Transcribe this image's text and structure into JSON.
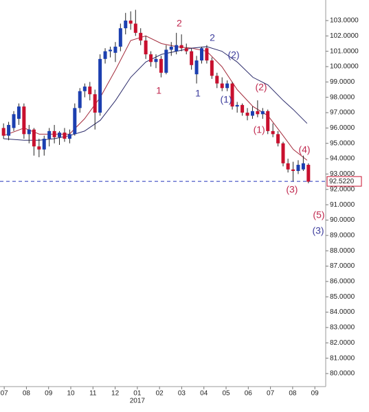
{
  "chart_data": {
    "type": "candlestick",
    "up_color": "#1c3fb0",
    "down_color": "#c8102e",
    "xlim": [
      -0.19,
      14.49
    ],
    "ylim": [
      79.15,
      104.34
    ],
    "xticks": [
      {
        "value": 0,
        "label": "07"
      },
      {
        "value": 1,
        "label": "08"
      },
      {
        "value": 2,
        "label": "09"
      },
      {
        "value": 3,
        "label": "10"
      },
      {
        "value": 4,
        "label": "11"
      },
      {
        "value": 5,
        "label": "12"
      },
      {
        "value": 6,
        "label": "01"
      },
      {
        "value": 7,
        "label": "02"
      },
      {
        "value": 8,
        "label": "03"
      },
      {
        "value": 9,
        "label": "04"
      },
      {
        "value": 10,
        "label": "05"
      },
      {
        "value": 11,
        "label": "06"
      },
      {
        "value": 12,
        "label": "07"
      },
      {
        "value": 13,
        "label": "08"
      },
      {
        "value": 14,
        "label": "09"
      }
    ],
    "year_label": "2017",
    "yticks": [
      {
        "value": 80,
        "label": "80.0000"
      },
      {
        "value": 81,
        "label": "81.0000"
      },
      {
        "value": 82,
        "label": "82.0000"
      },
      {
        "value": 83,
        "label": "83.0000"
      },
      {
        "value": 84,
        "label": "84.0000"
      },
      {
        "value": 85,
        "label": "85.0000"
      },
      {
        "value": 86,
        "label": "86.0000"
      },
      {
        "value": 87,
        "label": "87.0000"
      },
      {
        "value": 88,
        "label": "88.0000"
      },
      {
        "value": 89,
        "label": "89.0000"
      },
      {
        "value": 90,
        "label": "90.0000"
      },
      {
        "value": 91,
        "label": "91.0000"
      },
      {
        "value": 92,
        "label": "92.0000"
      },
      {
        "value": 93,
        "label": "93.0000"
      },
      {
        "value": 94,
        "label": "94.0000"
      },
      {
        "value": 95,
        "label": "95.0000"
      },
      {
        "value": 96,
        "label": "96.0000"
      },
      {
        "value": 97,
        "label": "97.0000"
      },
      {
        "value": 98,
        "label": "98.0000"
      },
      {
        "value": 99,
        "label": "99.0000"
      },
      {
        "value": 100,
        "label": "100.0000"
      },
      {
        "value": 101,
        "label": "101.0000"
      },
      {
        "value": 102,
        "label": "102.0000"
      },
      {
        "value": 103,
        "label": "103.0000"
      }
    ],
    "x": [
      -0.03,
      0.2,
      0.43,
      0.66,
      0.89,
      1.12,
      1.34,
      1.57,
      1.8,
      2.03,
      2.26,
      2.49,
      2.72,
      2.95,
      3.18,
      3.41,
      3.63,
      3.86,
      4.09,
      4.32,
      4.55,
      4.78,
      5.01,
      5.24,
      5.47,
      5.7,
      5.92,
      6.15,
      6.38,
      6.61,
      6.84,
      7.07,
      7.3,
      7.53,
      7.76,
      7.99,
      8.21,
      8.44,
      8.67,
      8.9,
      9.13,
      9.36,
      9.59,
      9.82,
      10.05,
      10.28,
      10.5,
      10.73,
      10.96,
      11.19,
      11.42,
      11.65,
      11.88,
      12.11,
      12.34,
      12.57,
      12.79,
      13.02,
      13.25,
      13.48,
      13.71
    ],
    "open": [
      96.0,
      95.5,
      96.0,
      96.6,
      97.4,
      95.6,
      95.9,
      94.8,
      94.6,
      95.3,
      95.8,
      95.4,
      95.7,
      95.3,
      95.6,
      97.3,
      98.4,
      98.7,
      98.2,
      97.0,
      100.5,
      101.0,
      100.9,
      101.3,
      102.5,
      103.0,
      102.8,
      102.2,
      101.7,
      100.8,
      100.3,
      100.5,
      99.6,
      101.1,
      101.0,
      101.4,
      101.2,
      101.0,
      99.5,
      100.4,
      101.2,
      100.4,
      99.4,
      98.9,
      98.6,
      98.9,
      97.4,
      97.5,
      97.0,
      96.8,
      97.1,
      96.9,
      97.1,
      95.8,
      95.6,
      95.0,
      93.7,
      93.3,
      93.2,
      93.3,
      93.6
    ],
    "high": [
      96.3,
      96.4,
      97.1,
      97.6,
      97.6,
      96.2,
      96.0,
      95.3,
      95.5,
      96.0,
      96.2,
      95.8,
      96.0,
      95.9,
      97.6,
      98.6,
      98.9,
      99.0,
      98.5,
      100.8,
      101.2,
      101.3,
      101.6,
      102.8,
      103.5,
      103.6,
      103.7,
      102.5,
      102.0,
      101.0,
      100.8,
      100.7,
      101.4,
      101.6,
      102.2,
      102.1,
      101.5,
      101.2,
      100.7,
      101.3,
      101.4,
      100.6,
      99.6,
      99.3,
      99.1,
      99.0,
      97.7,
      97.6,
      97.3,
      97.4,
      97.8,
      97.3,
      97.2,
      96.3,
      95.8,
      95.1,
      94.0,
      93.8,
      93.9,
      94.2,
      93.7
    ],
    "low": [
      95.3,
      95.2,
      95.8,
      96.2,
      95.3,
      95.0,
      94.2,
      94.1,
      94.2,
      94.8,
      95.0,
      94.9,
      95.1,
      95.0,
      95.5,
      97.0,
      98.0,
      97.8,
      95.9,
      96.8,
      100.2,
      100.6,
      100.3,
      101.0,
      102.1,
      102.4,
      102.0,
      101.4,
      100.5,
      100.0,
      99.9,
      99.3,
      99.5,
      100.7,
      100.8,
      101.0,
      100.8,
      99.8,
      98.9,
      100.2,
      100.2,
      99.2,
      98.6,
      98.4,
      98.4,
      97.2,
      97.0,
      96.8,
      96.5,
      96.6,
      96.7,
      96.6,
      95.6,
      95.4,
      94.8,
      93.5,
      93.1,
      92.5,
      93.0,
      93.2,
      92.4
    ],
    "close": [
      95.5,
      96.2,
      96.9,
      97.4,
      95.6,
      95.9,
      94.8,
      94.6,
      95.3,
      95.8,
      95.4,
      95.7,
      95.3,
      95.6,
      97.3,
      98.4,
      98.7,
      98.2,
      97.0,
      100.5,
      101.0,
      101.1,
      101.3,
      102.5,
      103.0,
      102.8,
      102.2,
      101.7,
      100.8,
      100.3,
      100.5,
      99.6,
      101.1,
      101.3,
      101.4,
      101.2,
      101.0,
      100.1,
      100.4,
      101.2,
      100.4,
      99.4,
      98.9,
      98.6,
      98.9,
      97.4,
      97.5,
      97.0,
      96.8,
      97.1,
      96.9,
      97.1,
      95.8,
      95.6,
      95.0,
      93.7,
      93.3,
      93.2,
      93.6,
      93.7,
      92.5
    ],
    "lines": [
      {
        "color": "#a32a3a",
        "x": [
          -0.03,
          0.9,
          1.58,
          2.26,
          2.94,
          3.62,
          4.33,
          5.02,
          5.7,
          6.38,
          7.09,
          7.77,
          8.45,
          9.13,
          9.81,
          10.5,
          11.21,
          11.89,
          12.57,
          13.03,
          13.65
        ],
        "values": [
          95.5,
          96.0,
          95.6,
          95.6,
          95.6,
          96.6,
          98.0,
          99.8,
          101.7,
          102.0,
          101.5,
          101.3,
          101.2,
          101.0,
          100.0,
          98.5,
          97.4,
          96.8,
          95.5,
          94.6,
          93.9
        ]
      },
      {
        "color": "#2a2a6a",
        "x": [
          -0.03,
          0.9,
          1.58,
          2.26,
          2.94,
          3.62,
          4.33,
          5.02,
          5.7,
          6.38,
          7.09,
          7.77,
          8.45,
          9.13,
          9.81,
          10.5,
          11.21,
          11.89,
          12.57,
          13.03,
          13.65
        ],
        "values": [
          95.3,
          95.2,
          95.2,
          95.3,
          95.5,
          95.8,
          96.5,
          97.8,
          99.3,
          100.3,
          100.8,
          101.0,
          101.2,
          101.3,
          101.0,
          100.3,
          99.3,
          98.8,
          97.8,
          97.2,
          96.3
        ]
      }
    ],
    "price_line": {
      "value": 92.522,
      "label": "92.5220",
      "color": "#2233bb"
    },
    "annotations": [
      {
        "text": "1",
        "x": 6.97,
        "y": 98.39,
        "color": "#c0284e"
      },
      {
        "text": "2",
        "x": 7.89,
        "y": 102.78,
        "color": "#c0284e"
      },
      {
        "text": "1",
        "x": 8.73,
        "y": 98.21,
        "color": "#3c3c9c"
      },
      {
        "text": "2",
        "x": 9.38,
        "y": 101.84,
        "color": "#3c3c9c"
      },
      {
        "text": "(2)",
        "x": 10.34,
        "y": 100.72,
        "color": "#3c3c9c"
      },
      {
        "text": "(1)",
        "x": 10.0,
        "y": 97.81,
        "color": "#3c3c9c"
      },
      {
        "text": "(2)",
        "x": 11.58,
        "y": 98.62,
        "color": "#c0284e"
      },
      {
        "text": "(1)",
        "x": 11.49,
        "y": 95.84,
        "color": "#c0284e"
      },
      {
        "text": "(4)",
        "x": 13.53,
        "y": 94.54,
        "color": "#c0284e"
      },
      {
        "text": "(3)",
        "x": 12.97,
        "y": 91.95,
        "color": "#c0284e"
      },
      {
        "text": "(5)",
        "x": 14.18,
        "y": 90.29,
        "color": "#c0284e"
      },
      {
        "text": "(3)",
        "x": 14.15,
        "y": 89.26,
        "color": "#3c3c9c"
      }
    ]
  }
}
